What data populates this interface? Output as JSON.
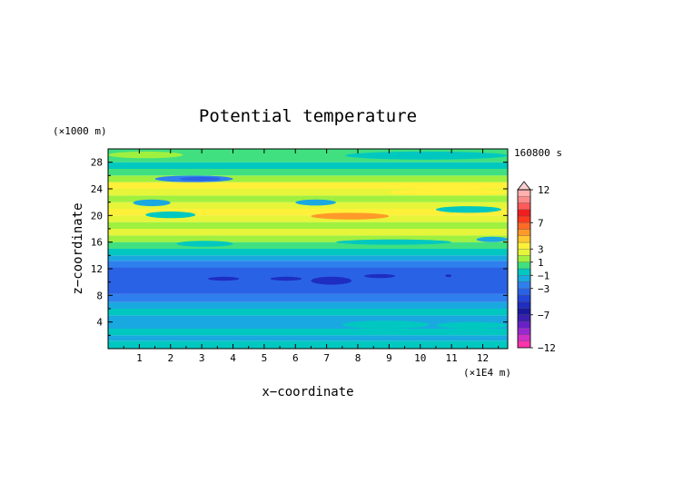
{
  "chart_data": {
    "type": "heatmap",
    "title": "Potential temperature",
    "xlabel": "x−coordinate",
    "ylabel": "z−coordinate",
    "x_unit": "(×1E4 m)",
    "y_unit": "(×1000 m)",
    "time_label": "160800 s",
    "xlim": [
      0,
      12.8
    ],
    "ylim": [
      0,
      30
    ],
    "x_ticks": [
      1,
      2,
      3,
      4,
      5,
      6,
      7,
      8,
      9,
      10,
      11,
      12
    ],
    "y_ticks": [
      4,
      8,
      12,
      16,
      20,
      24,
      28
    ],
    "colorbar": {
      "labels": [
        "12",
        "7",
        "3",
        "1",
        "−1",
        "−3",
        "−7",
        "−12"
      ],
      "label_values": [
        12,
        7,
        3,
        1,
        -1,
        -3,
        -7,
        -12
      ],
      "levels": [
        -12,
        -11,
        -10,
        -9,
        -8,
        -7,
        -6,
        -5,
        -4,
        -3,
        -2,
        -1,
        0,
        1,
        2,
        3,
        4,
        5,
        6,
        7,
        8,
        9,
        10,
        11,
        12
      ],
      "colors": [
        "#ff33aa",
        "#d030c8",
        "#9a28d0",
        "#6a20c8",
        "#3b1fb0",
        "#1a1aa0",
        "#1e2ec0",
        "#2346d8",
        "#2a62e6",
        "#2f80ee",
        "#1aa8e0",
        "#00c8c0",
        "#40e080",
        "#a0f040",
        "#e6f53a",
        "#fff03a",
        "#ffc830",
        "#ff9a2a",
        "#ff6a25",
        "#ff3a1e",
        "#f01e1e",
        "#ff5a5a",
        "#ff8a8a",
        "#ffb0b0"
      ]
    },
    "layers": [
      {
        "z": [
          0.0,
          1.2
        ],
        "value": -0.5
      },
      {
        "z": [
          1.2,
          2.0
        ],
        "value": -1.5
      },
      {
        "z": [
          2.0,
          3.0
        ],
        "value": -0.5
      },
      {
        "z": [
          3.0,
          5.0
        ],
        "value": -1.5
      },
      {
        "z": [
          5.0,
          6.0
        ],
        "value": -0.5
      },
      {
        "z": [
          6.0,
          7.0
        ],
        "value": -1.5
      },
      {
        "z": [
          7.0,
          8.2
        ],
        "value": -2.5
      },
      {
        "z": [
          8.2,
          12.2
        ],
        "value": -3.5
      },
      {
        "z": [
          12.2,
          13.2
        ],
        "value": -2.5
      },
      {
        "z": [
          13.2,
          14.0
        ],
        "value": -1.5
      },
      {
        "z": [
          14.0,
          15.0
        ],
        "value": -0.5
      },
      {
        "z": [
          15.0,
          16.0
        ],
        "value": 0.5
      },
      {
        "z": [
          16.0,
          17.0
        ],
        "value": 1.5
      },
      {
        "z": [
          17.0,
          18.0
        ],
        "value": 2.5
      },
      {
        "z": [
          18.0,
          19.0
        ],
        "value": 1.5
      },
      {
        "z": [
          19.0,
          20.0
        ],
        "value": 2.5
      },
      {
        "z": [
          20.0,
          21.0
        ],
        "value": 3.5
      },
      {
        "z": [
          21.0,
          22.0
        ],
        "value": 2.5
      },
      {
        "z": [
          22.0,
          23.0
        ],
        "value": 1.5
      },
      {
        "z": [
          23.0,
          24.0
        ],
        "value": 2.5
      },
      {
        "z": [
          24.0,
          25.0
        ],
        "value": 3.5
      },
      {
        "z": [
          25.0,
          26.0
        ],
        "value": 1.5
      },
      {
        "z": [
          26.0,
          27.0
        ],
        "value": 0.5
      },
      {
        "z": [
          27.0,
          28.0
        ],
        "value": -0.5
      },
      {
        "z": [
          28.0,
          30.0
        ],
        "value": 0.5
      }
    ],
    "features": [
      {
        "x": [
          1.5,
          4.0
        ],
        "z": [
          25.0,
          26.0
        ],
        "value": -2.5
      },
      {
        "x": [
          2.3,
          3.6
        ],
        "z": [
          25.2,
          25.8
        ],
        "value": -3.5
      },
      {
        "x": [
          0.8,
          2.0
        ],
        "z": [
          21.4,
          22.4
        ],
        "value": -1.5
      },
      {
        "x": [
          6.0,
          7.3
        ],
        "z": [
          21.5,
          22.4
        ],
        "value": -1.5
      },
      {
        "x": [
          1.2,
          2.8
        ],
        "z": [
          19.6,
          20.6
        ],
        "value": -0.5
      },
      {
        "x": [
          10.5,
          12.6
        ],
        "z": [
          20.4,
          21.4
        ],
        "value": -0.5
      },
      {
        "x": [
          6.5,
          9.0
        ],
        "z": [
          19.4,
          20.4
        ],
        "value": 5.5
      },
      {
        "x": [
          9.0,
          12.8
        ],
        "z": [
          23.0,
          24.0
        ],
        "value": 3.5
      },
      {
        "x": [
          2.2,
          4.0
        ],
        "z": [
          15.3,
          16.2
        ],
        "value": -0.5
      },
      {
        "x": [
          7.3,
          11.0
        ],
        "z": [
          15.6,
          16.4
        ],
        "value": -0.5
      },
      {
        "x": [
          11.8,
          12.8
        ],
        "z": [
          16.0,
          16.8
        ],
        "value": -1.5
      },
      {
        "x": [
          3.2,
          4.2
        ],
        "z": [
          10.2,
          10.8
        ],
        "value": -5.5
      },
      {
        "x": [
          5.2,
          6.2
        ],
        "z": [
          10.2,
          10.8
        ],
        "value": -5.5
      },
      {
        "x": [
          6.5,
          7.8
        ],
        "z": [
          9.6,
          10.8
        ],
        "value": -5.5
      },
      {
        "x": [
          8.2,
          9.2
        ],
        "z": [
          10.6,
          11.2
        ],
        "value": -5.5
      },
      {
        "x": [
          10.8,
          11.0
        ],
        "z": [
          10.8,
          11.1
        ],
        "value": -5.5
      },
      {
        "x": [
          7.5,
          10.3
        ],
        "z": [
          3.0,
          4.2
        ],
        "value": -0.5
      },
      {
        "x": [
          10.5,
          12.8
        ],
        "z": [
          3.0,
          4.0
        ],
        "value": -0.5
      },
      {
        "x": [
          7.6,
          12.8
        ],
        "z": [
          28.4,
          29.6
        ],
        "value": -0.5
      },
      {
        "x": [
          0.0,
          2.4
        ],
        "z": [
          28.6,
          29.6
        ],
        "value": 1.5
      }
    ]
  }
}
